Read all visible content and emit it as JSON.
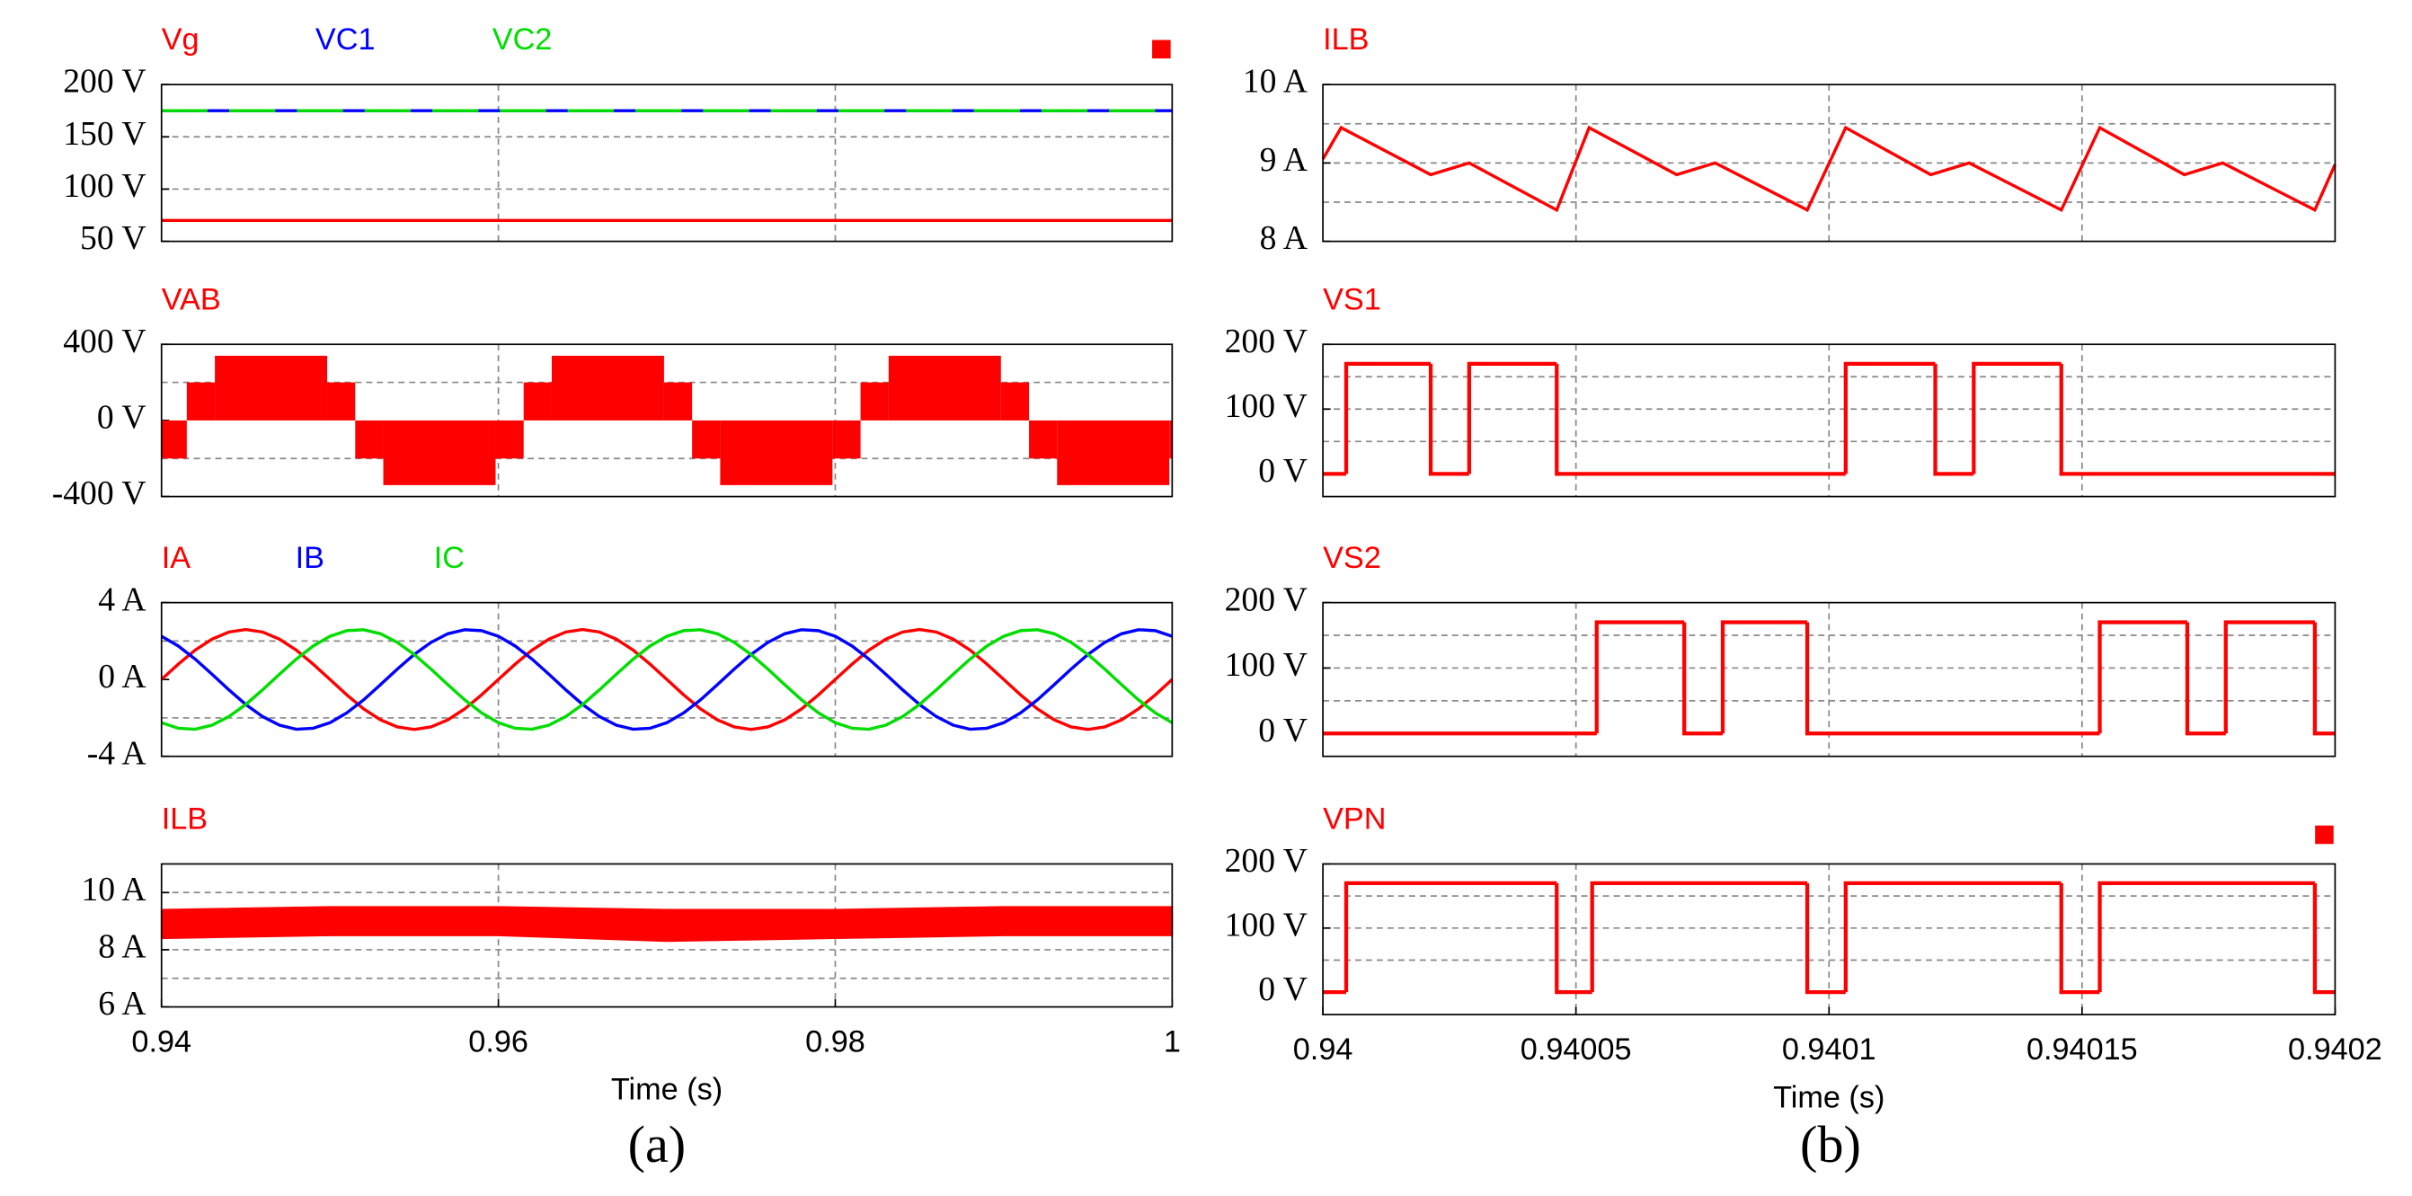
{
  "captions": [
    "(a)",
    "(b)"
  ],
  "chart_data": [
    {
      "type": "line",
      "x": [
        0.94,
        1
      ],
      "xlim": [
        0.94,
        1
      ],
      "xticks": [
        0.94,
        0.96,
        0.98,
        1
      ],
      "ylim": [
        50,
        200
      ],
      "yticks": [
        {
          "value": 50,
          "label": "50 V"
        },
        {
          "value": 100,
          "label": "100 V"
        },
        {
          "value": 150,
          "label": "150 V"
        },
        {
          "value": 200,
          "label": "200 V"
        }
      ],
      "ygrid": [
        100,
        150
      ],
      "series": [
        {
          "name": "Vg",
          "color": "#ff0000",
          "values": [
            70,
            70
          ]
        },
        {
          "name": "VC1",
          "color": "#0000ff",
          "values": [
            175,
            175
          ]
        },
        {
          "name": "VC2",
          "color": "#00dd00",
          "values": [
            175,
            175
          ]
        }
      ]
    },
    {
      "type": "step-area",
      "xlim": [
        0.94,
        1
      ],
      "xticks": [
        0.94,
        0.96,
        0.98,
        1
      ],
      "x": [
        0.94,
        0.9415,
        0.943167,
        0.949833,
        0.9515,
        0.953167,
        0.959833,
        0.9615,
        0.963167,
        0.969833,
        0.9715,
        0.973167,
        0.979833,
        0.9815,
        0.983167,
        0.989833,
        0.9915,
        0.993167,
        0.999833
      ],
      "ylim": [
        -400,
        400
      ],
      "yticks": [
        {
          "value": -400,
          "label": "-400 V"
        },
        {
          "value": 0,
          "label": "0 V"
        },
        {
          "value": 400,
          "label": "400 V"
        }
      ],
      "ygrid": [
        -200,
        200
      ],
      "series": [
        {
          "name": "VAB",
          "color": "#ff0000",
          "values": [
            -200,
            200,
            340,
            200,
            -200,
            -340,
            -200,
            200,
            340,
            200,
            -200,
            -340,
            -200,
            200,
            340,
            200,
            -200,
            -340,
            -200
          ]
        }
      ]
    },
    {
      "type": "line",
      "xlim": [
        0.94,
        1
      ],
      "xticks": [
        0.94,
        0.96,
        0.98,
        1
      ],
      "x": [
        0.94,
        0.941,
        0.942,
        0.943,
        0.944,
        0.945,
        0.946,
        0.947,
        0.948,
        0.949,
        0.95,
        0.951,
        0.952,
        0.953,
        0.954,
        0.955,
        0.956,
        0.957,
        0.958,
        0.959,
        0.96,
        0.961,
        0.962,
        0.963,
        0.964,
        0.965,
        0.966,
        0.967,
        0.968,
        0.969,
        0.97,
        0.971,
        0.972,
        0.973,
        0.974,
        0.975,
        0.976,
        0.977,
        0.978,
        0.979,
        0.98,
        0.981,
        0.982,
        0.983,
        0.984,
        0.985,
        0.986,
        0.987,
        0.988,
        0.989,
        0.99,
        0.991,
        0.992,
        0.993,
        0.994,
        0.995,
        0.996,
        0.997,
        0.998,
        0.999,
        1
      ],
      "ylim": [
        -4,
        4
      ],
      "yticks": [
        {
          "value": -4,
          "label": "-4 A"
        },
        {
          "value": 0,
          "label": "0 A"
        },
        {
          "value": 4,
          "label": "4 A"
        }
      ],
      "ygrid": [
        -2,
        2
      ],
      "series": [
        {
          "name": "IA",
          "color": "#ff0000",
          "values": [
            0,
            0.8,
            1.53,
            2.1,
            2.47,
            2.6,
            2.47,
            2.1,
            1.53,
            0.8,
            0,
            -0.8,
            -1.53,
            -2.1,
            -2.47,
            -2.6,
            -2.47,
            -2.1,
            -1.53,
            -0.8,
            0,
            0.8,
            1.53,
            2.1,
            2.47,
            2.6,
            2.47,
            2.1,
            1.53,
            0.8,
            0,
            -0.8,
            -1.53,
            -2.1,
            -2.47,
            -2.6,
            -2.47,
            -2.1,
            -1.53,
            -0.8,
            0,
            0.8,
            1.53,
            2.1,
            2.47,
            2.6,
            2.47,
            2.1,
            1.53,
            0.8,
            0,
            -0.8,
            -1.53,
            -2.1,
            -2.47,
            -2.6,
            -2.47,
            -2.1,
            -1.53,
            -0.8,
            0
          ]
        },
        {
          "name": "IB",
          "color": "#0000ff",
          "values": [
            2.25,
            1.74,
            1.06,
            0.27,
            -0.54,
            -1.3,
            -1.93,
            -2.38,
            -2.59,
            -2.54,
            -2.25,
            -1.74,
            -1.06,
            -0.27,
            0.54,
            1.3,
            1.93,
            2.38,
            2.59,
            2.54,
            2.25,
            1.74,
            1.06,
            0.27,
            -0.54,
            -1.3,
            -1.93,
            -2.38,
            -2.59,
            -2.54,
            -2.25,
            -1.74,
            -1.06,
            -0.27,
            0.54,
            1.3,
            1.93,
            2.38,
            2.59,
            2.54,
            2.25,
            1.74,
            1.06,
            0.27,
            -0.54,
            -1.3,
            -1.93,
            -2.38,
            -2.59,
            -2.54,
            -2.25,
            -1.74,
            -1.06,
            -0.27,
            0.54,
            1.3,
            1.93,
            2.38,
            2.59,
            2.54,
            2.25
          ]
        },
        {
          "name": "IC",
          "color": "#00dd00",
          "values": [
            -2.25,
            -2.54,
            -2.59,
            -2.38,
            -1.93,
            -1.3,
            -0.54,
            0.27,
            1.06,
            1.74,
            2.25,
            2.54,
            2.59,
            2.38,
            1.93,
            1.3,
            0.54,
            -0.27,
            -1.06,
            -1.74,
            -2.25,
            -2.54,
            -2.59,
            -2.38,
            -1.93,
            -1.3,
            -0.54,
            0.27,
            1.06,
            1.74,
            2.25,
            2.54,
            2.59,
            2.38,
            1.93,
            1.3,
            0.54,
            -0.27,
            -1.06,
            -1.74,
            -2.25,
            -2.54,
            -2.59,
            -2.38,
            -1.93,
            -1.3,
            -0.54,
            0.27,
            1.06,
            1.74,
            2.25,
            2.54,
            2.59,
            2.38,
            1.93,
            1.3,
            0.54,
            -0.27,
            -1.06,
            -1.74,
            -2.25
          ]
        }
      ]
    },
    {
      "type": "band",
      "xlabel": "Time (s)",
      "xlim": [
        0.94,
        1
      ],
      "xticks": [
        0.94,
        0.96,
        0.98,
        1
      ],
      "x": [
        0.94,
        0.95,
        0.96,
        0.97,
        0.98,
        0.99,
        1
      ],
      "ylim": [
        6,
        11
      ],
      "yticks": [
        {
          "value": 6,
          "label": "6 A"
        },
        {
          "value": 8,
          "label": "8 A"
        },
        {
          "value": 10,
          "label": "10 A"
        }
      ],
      "ygrid": [
        7,
        8,
        9,
        10
      ],
      "series": [
        {
          "name": "ILB",
          "color": "#ff0000",
          "upper": [
            9.4,
            9.5,
            9.5,
            9.4,
            9.4,
            9.5,
            9.5
          ],
          "lower": [
            8.4,
            8.5,
            8.5,
            8.3,
            8.4,
            8.5,
            8.5
          ]
        }
      ]
    },
    {
      "type": "line",
      "xlim": [
        0.94,
        0.9402
      ],
      "xticks": [
        0.94,
        0.94005,
        0.9401,
        0.94015,
        0.9402
      ],
      "x": [
        0.94,
        0.9400036,
        0.9400213,
        0.9400289,
        0.9400462,
        0.9400526,
        0.9400699,
        0.9400775,
        0.9400957,
        0.9401033,
        0.9401201,
        0.9401277,
        0.9401459,
        0.9401535,
        0.9401702,
        0.9401778,
        0.940196,
        0.9402
      ],
      "ylim": [
        8,
        10
      ],
      "yticks": [
        {
          "value": 8,
          "label": "8 A"
        },
        {
          "value": 9,
          "label": "9 A"
        },
        {
          "value": 10,
          "label": "10 A"
        }
      ],
      "ygrid": [
        8.5,
        9,
        9.5
      ],
      "series": [
        {
          "name": "ILB",
          "color": "#ff0000",
          "values": [
            9.05,
            9.45,
            8.85,
            9.0,
            8.4,
            9.45,
            8.85,
            9.0,
            8.4,
            9.45,
            8.85,
            9.0,
            8.4,
            9.45,
            8.85,
            9.0,
            8.4,
            8.98
          ]
        }
      ]
    },
    {
      "type": "step",
      "xlim": [
        0.94,
        0.9402
      ],
      "xticks": [
        0.94,
        0.94005,
        0.9401,
        0.94015,
        0.9402
      ],
      "x": [
        0.94,
        0.9400046,
        0.9400213,
        0.9400289,
        0.9400462,
        0.9401033,
        0.940121,
        0.9401286,
        0.9401459
      ],
      "ylim": [
        -35,
        200
      ],
      "yticks": [
        {
          "value": 0,
          "label": "0 V"
        },
        {
          "value": 100,
          "label": "100 V"
        },
        {
          "value": 200,
          "label": "200 V"
        }
      ],
      "ygrid": [
        50,
        100,
        150
      ],
      "series": [
        {
          "name": "VS1",
          "color": "#ff0000",
          "values": [
            0,
            170,
            0,
            170,
            0,
            170,
            0,
            170,
            0
          ]
        }
      ]
    },
    {
      "type": "step",
      "xlim": [
        0.94,
        0.9402
      ],
      "xticks": [
        0.94,
        0.94005,
        0.9401,
        0.94015,
        0.9402
      ],
      "x": [
        0.94,
        0.9400541,
        0.9400714,
        0.940079,
        0.9400957,
        0.9401535,
        0.9401708,
        0.9401784,
        0.940196
      ],
      "ylim": [
        -35,
        200
      ],
      "yticks": [
        {
          "value": 0,
          "label": "0 V"
        },
        {
          "value": 100,
          "label": "100 V"
        },
        {
          "value": 200,
          "label": "200 V"
        }
      ],
      "ygrid": [
        50,
        100,
        150
      ],
      "series": [
        {
          "name": "VS2",
          "color": "#ff0000",
          "values": [
            0,
            170,
            0,
            170,
            0,
            170,
            0,
            170,
            0
          ]
        }
      ]
    },
    {
      "type": "step",
      "xlabel": "Time (s)",
      "xlim": [
        0.94,
        0.9402
      ],
      "xticks": [
        0.94,
        0.94005,
        0.9401,
        0.94015,
        0.9402
      ],
      "x": [
        0.94,
        0.9400046,
        0.9400462,
        0.9400532,
        0.9400957,
        0.9401033,
        0.9401459,
        0.9401535,
        0.940196
      ],
      "ylim": [
        -35,
        200
      ],
      "yticks": [
        {
          "value": 0,
          "label": "0 V"
        },
        {
          "value": 100,
          "label": "100 V"
        },
        {
          "value": 200,
          "label": "200 V"
        }
      ],
      "ygrid": [
        50,
        100,
        150
      ],
      "series": [
        {
          "name": "VPN",
          "color": "#ff0000",
          "values": [
            0,
            170,
            0,
            170,
            0,
            170,
            0,
            170,
            0
          ]
        }
      ]
    }
  ]
}
